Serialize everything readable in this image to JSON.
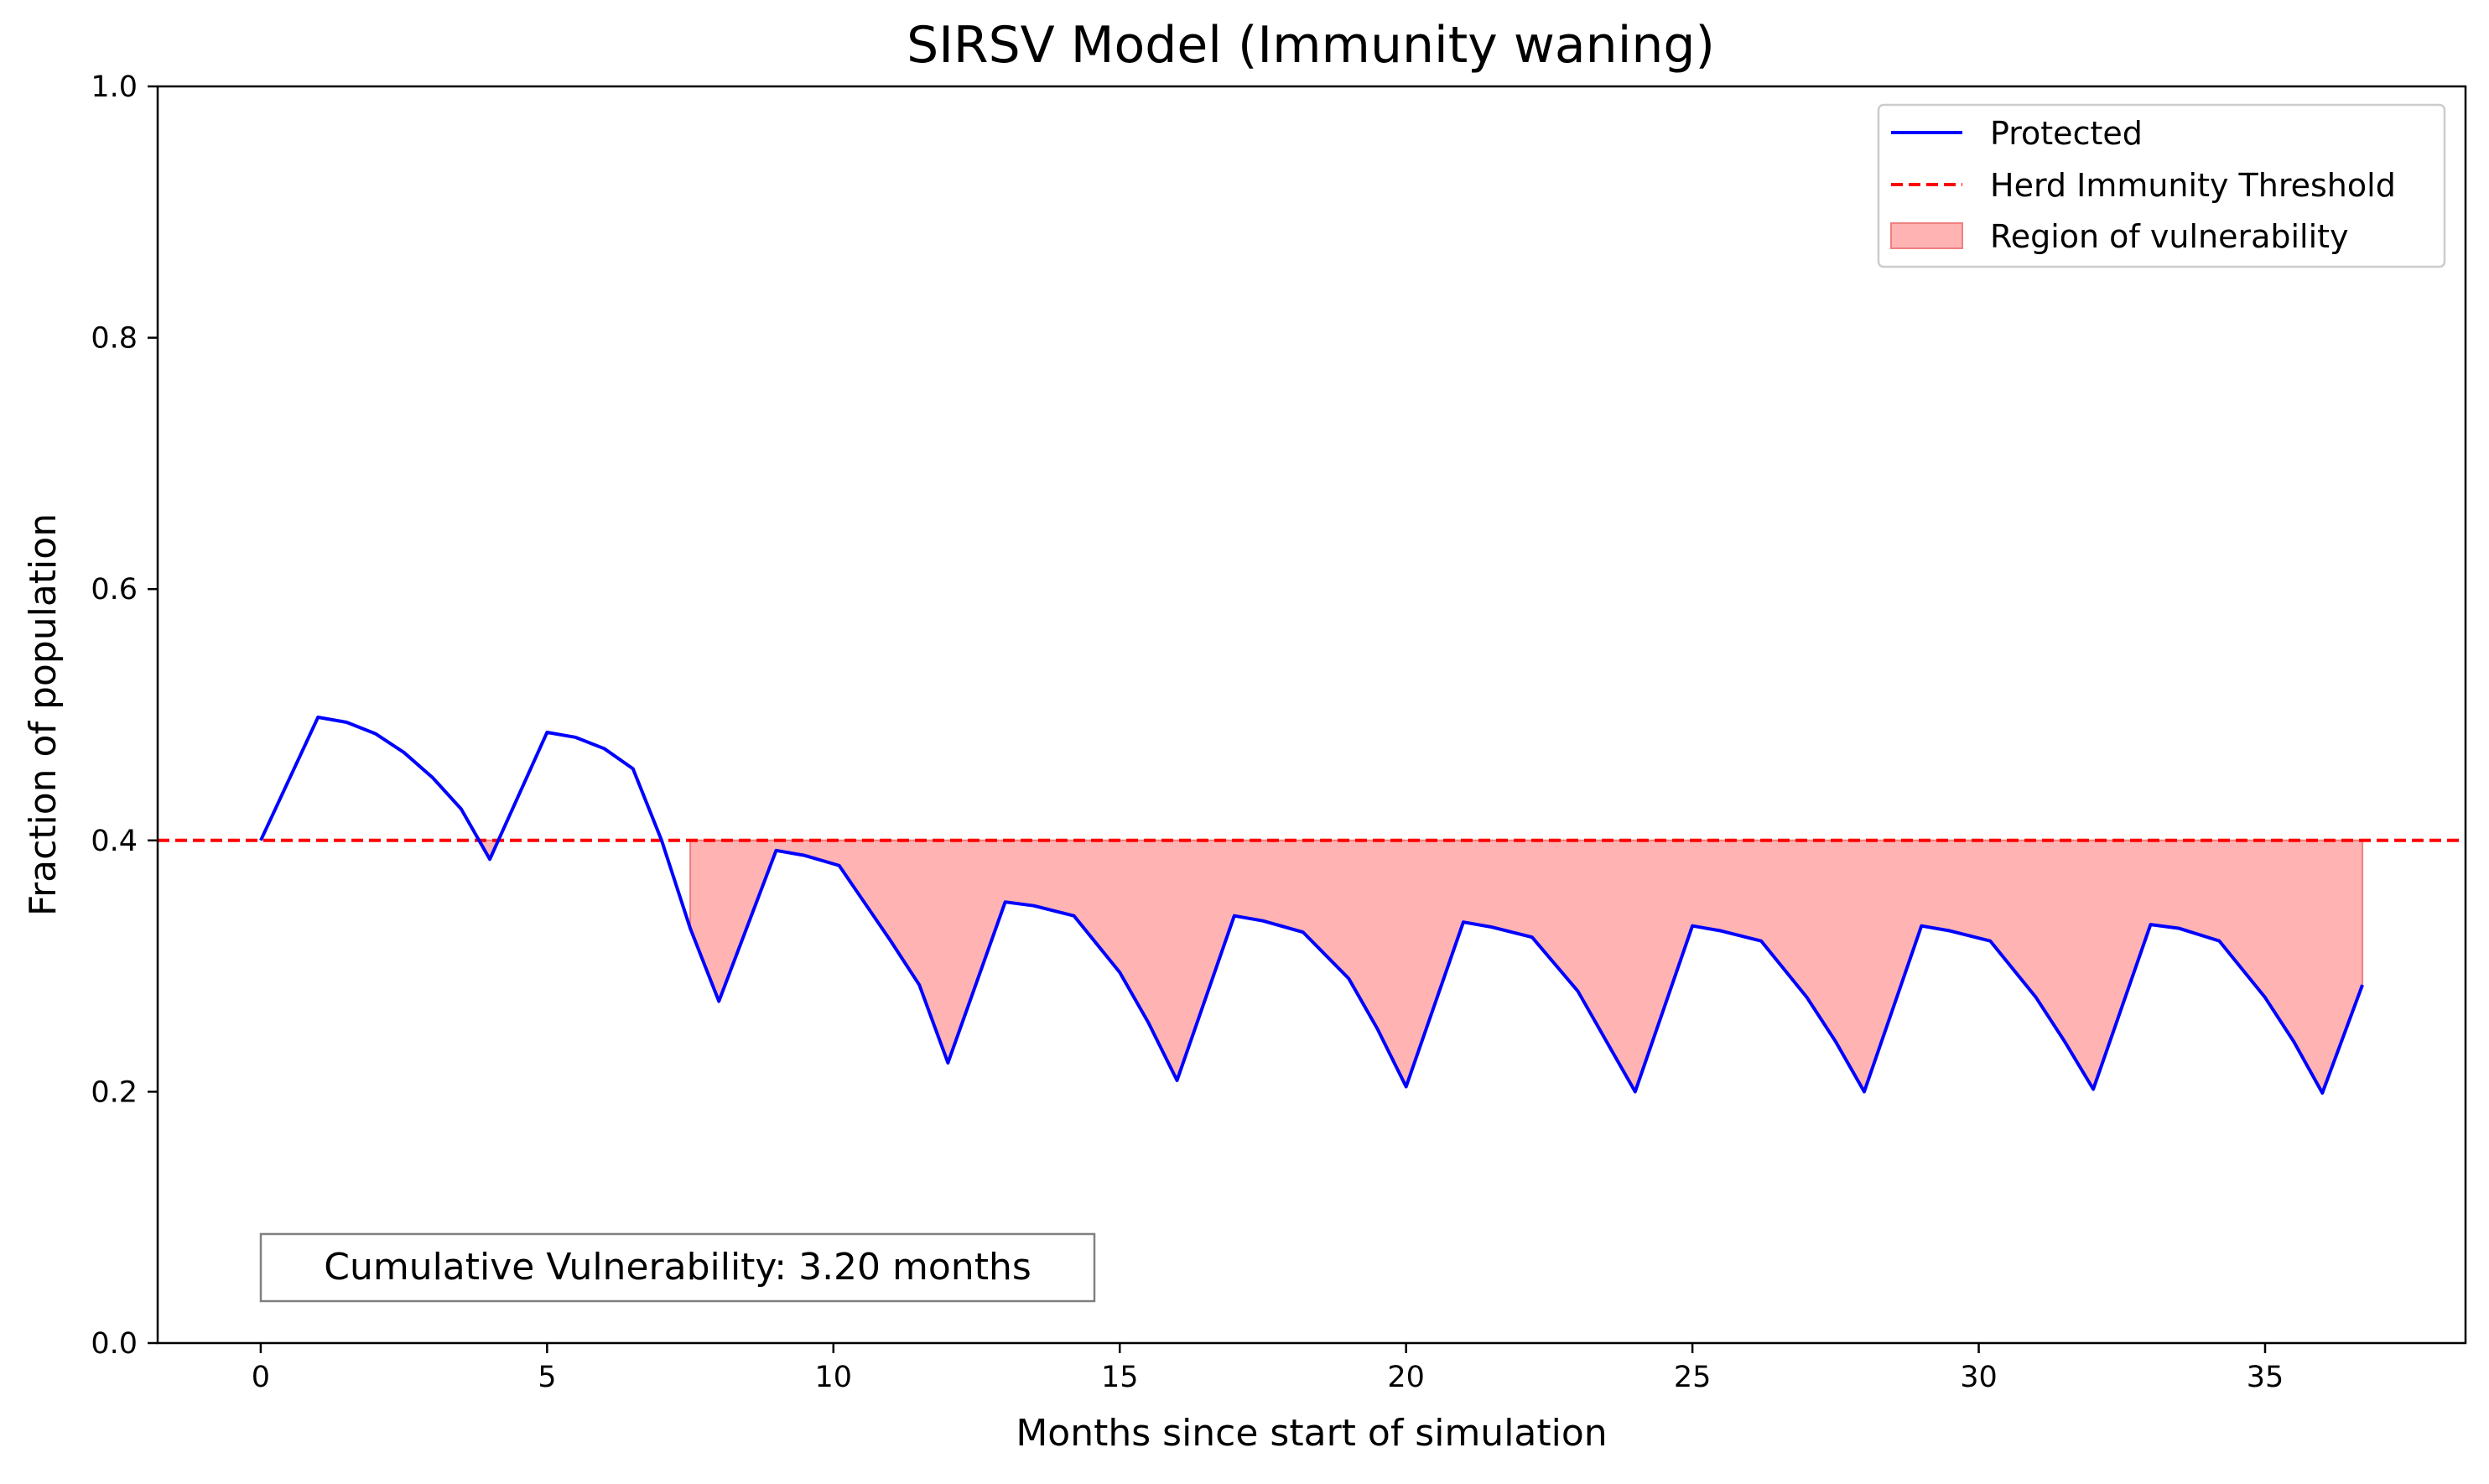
{
  "chart_data": {
    "type": "line",
    "title": "SIRSV Model (Immunity waning)",
    "xlabel": "Months since start of simulation",
    "ylabel": "Fraction of population",
    "xlim": [
      -1.8,
      38.5
    ],
    "ylim": [
      0.0,
      1.0
    ],
    "x_ticks": [
      0,
      5,
      10,
      15,
      20,
      25,
      30,
      35
    ],
    "y_ticks": [
      0.0,
      0.2,
      0.4,
      0.6,
      0.8,
      1.0
    ],
    "x_tick_labels": [
      "0",
      "5",
      "10",
      "15",
      "20",
      "25",
      "30",
      "35"
    ],
    "y_tick_labels": [
      "0.0",
      "0.2",
      "0.4",
      "0.6",
      "0.8",
      "1.0"
    ],
    "grid": false,
    "legend_position": "top-right",
    "threshold": 0.4,
    "series": [
      {
        "name": "Protected",
        "color": "#0000ff",
        "style": "solid",
        "x": [
          0,
          1,
          1.5,
          2,
          2.5,
          3,
          3.5,
          4,
          5,
          5.5,
          6,
          6.5,
          7,
          7.5,
          8,
          9,
          9.5,
          10.1,
          11,
          11.5,
          12,
          13,
          13.5,
          14.2,
          15,
          15.5,
          16,
          17,
          17.5,
          18.2,
          19,
          19.5,
          20,
          21,
          21.5,
          22.2,
          23,
          23.5,
          24,
          25,
          25.5,
          26.2,
          27,
          27.5,
          28,
          29,
          29.5,
          30.2,
          31,
          31.5,
          32,
          33,
          33.5,
          34.2,
          35,
          35.5,
          36,
          36.7
        ],
        "y": [
          0.4,
          0.498,
          0.494,
          0.485,
          0.47,
          0.45,
          0.425,
          0.385,
          0.486,
          0.482,
          0.473,
          0.457,
          0.4,
          0.33,
          0.272,
          0.392,
          0.388,
          0.38,
          0.32,
          0.285,
          0.223,
          0.351,
          0.348,
          0.34,
          0.295,
          0.255,
          0.209,
          0.34,
          0.336,
          0.327,
          0.29,
          0.25,
          0.204,
          0.335,
          0.331,
          0.323,
          0.28,
          0.24,
          0.2,
          0.332,
          0.328,
          0.32,
          0.275,
          0.24,
          0.2,
          0.332,
          0.328,
          0.32,
          0.275,
          0.24,
          0.202,
          0.333,
          0.33,
          0.32,
          0.275,
          0.24,
          0.199,
          0.285
        ]
      },
      {
        "name": "Herd Immunity Threshold",
        "color": "#ff0000",
        "style": "dashed",
        "y": 0.4
      }
    ],
    "fill": {
      "name": "Region of vulnerability",
      "color": "#ffb3b3",
      "edge_color": "#f08080",
      "between": "Protected and Herd Immunity Threshold where Protected is below"
    },
    "annotation": {
      "text": "Cumulative Vulnerability: 3.20 months",
      "position": "bottom-left"
    }
  }
}
